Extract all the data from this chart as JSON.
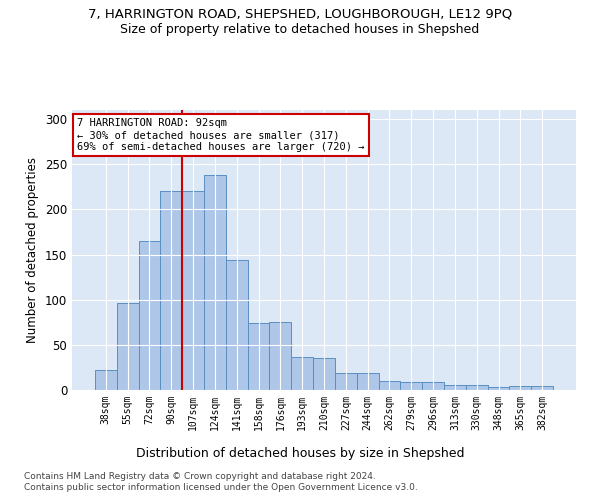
{
  "title1": "7, HARRINGTON ROAD, SHEPSHED, LOUGHBOROUGH, LE12 9PQ",
  "title2": "Size of property relative to detached houses in Shepshed",
  "xlabel": "Distribution of detached houses by size in Shepshed",
  "ylabel": "Number of detached properties",
  "bin_labels": [
    "38sqm",
    "55sqm",
    "72sqm",
    "90sqm",
    "107sqm",
    "124sqm",
    "141sqm",
    "158sqm",
    "176sqm",
    "193sqm",
    "210sqm",
    "227sqm",
    "244sqm",
    "262sqm",
    "279sqm",
    "296sqm",
    "313sqm",
    "330sqm",
    "348sqm",
    "365sqm",
    "382sqm"
  ],
  "bar_heights": [
    22,
    96,
    165,
    220,
    220,
    238,
    144,
    74,
    75,
    36,
    35,
    19,
    19,
    10,
    9,
    9,
    6,
    5,
    3,
    4,
    4
  ],
  "bar_color": "#aec6e8",
  "bar_edge_color": "#5a8fc2",
  "vline_x": 3.5,
  "vline_color": "#cc0000",
  "annotation_text": "7 HARRINGTON ROAD: 92sqm\n← 30% of detached houses are smaller (317)\n69% of semi-detached houses are larger (720) →",
  "annotation_box_color": "#ffffff",
  "annotation_box_edge_color": "#cc0000",
  "ylim": [
    0,
    310
  ],
  "yticks": [
    0,
    50,
    100,
    150,
    200,
    250,
    300
  ],
  "footer1": "Contains HM Land Registry data © Crown copyright and database right 2024.",
  "footer2": "Contains public sector information licensed under the Open Government Licence v3.0.",
  "bg_color": "#dce8f5",
  "fig_bg_color": "#ffffff"
}
